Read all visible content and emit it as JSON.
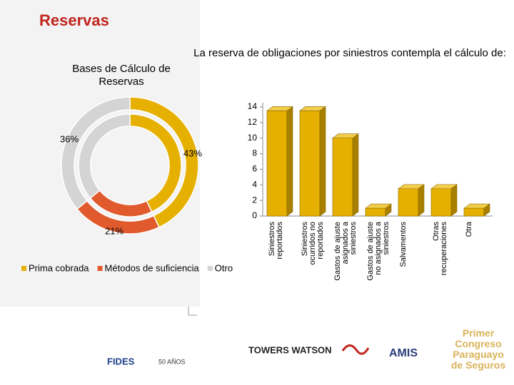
{
  "slide_title": "Reservas",
  "chart_data": [
    {
      "type": "donut",
      "title": "Bases de Cálculo de Reservas",
      "categories": [
        "Prima cobrada",
        "Métodos de suficiencia",
        "Otro"
      ],
      "values": [
        43,
        21,
        36
      ],
      "value_labels": [
        "43%",
        "21%",
        "36%"
      ],
      "colors": [
        "#e6b000",
        "#e05a2e",
        "#d4d4d4"
      ]
    },
    {
      "type": "bar3d",
      "title": "La reserva de obligaciones por siniestros contempla el cálculo de:",
      "categories": [
        "Siniestros reportados",
        "Siniestros ocurridos no reportados",
        "Gastos de ajuste asignados a siniestros",
        "Gastos de ajuste no asignados a siniestros",
        "Salvamentos",
        "Otras recuperaciones",
        "Otra"
      ],
      "values": [
        13.5,
        13.5,
        10,
        1,
        3.5,
        3.5,
        1
      ],
      "color": "#e6b000",
      "ylim": [
        0,
        14
      ],
      "yticks": [
        0,
        2,
        4,
        6,
        8,
        10,
        12,
        14
      ]
    }
  ],
  "logos": [
    "FIDES",
    "50 AÑOS",
    "TOWERS WATSON",
    "AMIS",
    "Primer Congreso Paraguayo de Seguros"
  ]
}
